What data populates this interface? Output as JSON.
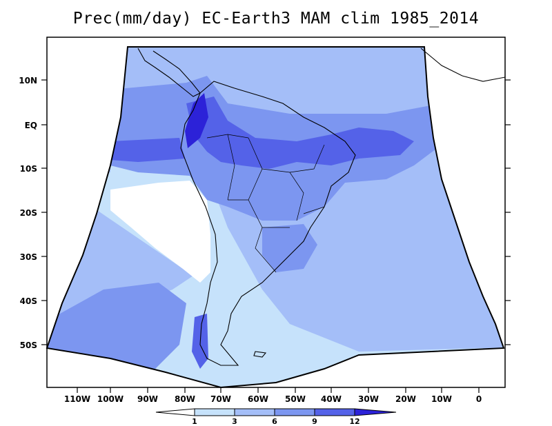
{
  "title": "Prec(mm/day) EC-Earth3 MAM clim 1985_2014",
  "map": {
    "region": "South America and adjacent oceans",
    "lat_range": [
      "~60S",
      "~19N"
    ],
    "lon_range": [
      "~117W",
      "~6E"
    ]
  },
  "lat_ticks": [
    "10N",
    "EQ",
    "10S",
    "20S",
    "30S",
    "40S",
    "50S"
  ],
  "lon_ticks": [
    "110W",
    "100W",
    "90W",
    "80W",
    "70W",
    "60W",
    "50W",
    "40W",
    "30W",
    "20W",
    "10W",
    "0"
  ],
  "colorbar": {
    "tick_labels": [
      "1",
      "3",
      "6",
      "9",
      "12"
    ],
    "colors": [
      "#ffffff",
      "#c6e2fb",
      "#a4bef8",
      "#7c96f0",
      "#5462e8",
      "#2c22d8"
    ]
  },
  "colors": {
    "c_lt1": "#ffffff",
    "c_1_3": "#c6e2fb",
    "c_3_6": "#a4bef8",
    "c_6_9": "#7c96f0",
    "c_9_12": "#5462e8",
    "c_gt12": "#2c22d8"
  }
}
